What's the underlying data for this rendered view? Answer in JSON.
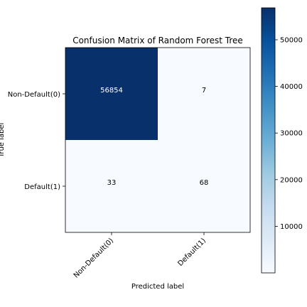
{
  "chart_data": {
    "type": "heatmap",
    "title": "Confusion Matrix of Random Forest Tree",
    "xlabel": "Predicted label",
    "ylabel": "True label",
    "x_categories": [
      "Non-Default(0)",
      "Default(1)"
    ],
    "y_categories": [
      "Non-Default(0)",
      "Default(1)"
    ],
    "values": [
      [
        56854,
        7
      ],
      [
        33,
        68
      ]
    ],
    "colormap": "Blues",
    "colorbar": {
      "ticks": [
        10000,
        20000,
        30000,
        40000,
        50000
      ],
      "vmin": 7,
      "vmax": 56854
    },
    "colors": {
      "low": "#f7fbff",
      "high": "#08306b",
      "text_on_dark": "#ffffff",
      "text_on_light": "#000000"
    }
  }
}
